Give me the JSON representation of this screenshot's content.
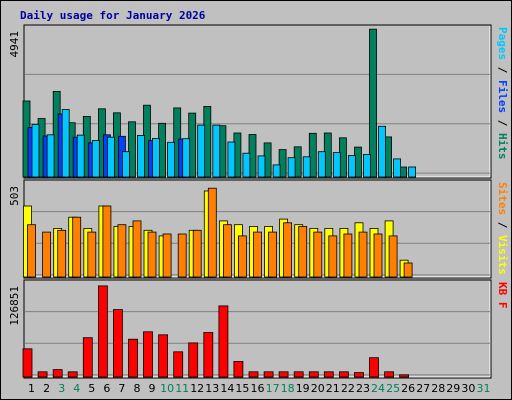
{
  "chart_data": {
    "type": "bar",
    "title": "Daily usage for January 2026",
    "categories": [
      "1",
      "2",
      "3",
      "4",
      "5",
      "6",
      "7",
      "8",
      "9",
      "10",
      "11",
      "12",
      "13",
      "14",
      "15",
      "16",
      "17",
      "18",
      "19",
      "20",
      "21",
      "22",
      "23",
      "24",
      "25",
      "26",
      "27",
      "28",
      "29",
      "30",
      "31"
    ],
    "weekend_days": [
      "3",
      "4",
      "10",
      "11",
      "17",
      "18",
      "24",
      "25",
      "31"
    ],
    "panels": [
      {
        "id": "hits-files-pages",
        "max_label": "4941",
        "ymax": 4941,
        "axis_label_parts": [
          {
            "text": "Pages",
            "color": "#00c8ff"
          },
          {
            "text": " / ",
            "color": "#000000"
          },
          {
            "text": "Files",
            "color": "#0040ff"
          },
          {
            "text": " / ",
            "color": "#000000"
          },
          {
            "text": "Hits",
            "color": "#00805c"
          }
        ],
        "series": [
          {
            "name": "Hits",
            "color": "#00805c",
            "values": [
              2520,
              1940,
              2840,
              1800,
              2010,
              2260,
              2130,
              1830,
              2380,
              1780,
              2290,
              2120,
              2340,
              1700,
              1460,
              1410,
              1130,
              910,
              1000,
              1450,
              1460,
              1300,
              990,
              4900,
              1330,
              330,
              0,
              0,
              0,
              0,
              0
            ]
          },
          {
            "name": "Files",
            "color": "#0040ff",
            "values": [
              1640,
              1360,
              2090,
              1320,
              1130,
              1400,
              1350,
              0,
              1210,
              0,
              1260,
              0,
              0,
              0,
              0,
              0,
              0,
              0,
              0,
              0,
              0,
              0,
              0,
              0,
              0,
              0,
              0,
              0,
              0,
              0,
              0
            ]
          },
          {
            "name": "Pages",
            "color": "#00c8ff",
            "values": [
              1740,
              1400,
              2240,
              1390,
              1210,
              1320,
              840,
              1380,
              1280,
              1150,
              1270,
              1720,
              1720,
              1160,
              790,
              700,
              400,
              640,
              670,
              840,
              810,
              710,
              750,
              1680,
              600,
              330,
              0,
              0,
              0,
              0,
              0
            ]
          }
        ]
      },
      {
        "id": "visits-sites",
        "max_label": "503",
        "ymax": 503,
        "axis_label_parts": [
          {
            "text": "Sites",
            "color": "#ff8000"
          },
          {
            "text": " / ",
            "color": "#000000"
          },
          {
            "text": "Visits",
            "color": "#ffff00"
          }
        ],
        "series": [
          {
            "name": "Visits",
            "color": "#ffff00",
            "values": [
              380,
              0,
              260,
              320,
              260,
              380,
              270,
              270,
              250,
              220,
              0,
              250,
              460,
              300,
              280,
              270,
              270,
              310,
              280,
              260,
              260,
              260,
              290,
              260,
              300,
              90,
              0,
              0,
              0,
              0,
              0
            ]
          },
          {
            "name": "Sites",
            "color": "#ff8000",
            "values": [
              280,
              240,
              250,
              320,
              240,
              380,
              280,
              300,
              240,
              230,
              230,
              250,
              475,
              280,
              220,
              240,
              240,
              290,
              270,
              240,
              220,
              230,
              240,
              230,
              220,
              75,
              0,
              0,
              0,
              0,
              0
            ]
          }
        ]
      },
      {
        "id": "kbytes",
        "max_label": "126851",
        "ymax": 126851,
        "axis_label_parts": [
          {
            "text": "KB F",
            "color": "#ff0000"
          }
        ],
        "series": [
          {
            "name": "KB F",
            "color": "#ff0000",
            "values": [
              38000,
              7000,
              10000,
              7000,
              53000,
              123000,
              91000,
              51000,
              61000,
              57000,
              34000,
              46000,
              60000,
              96000,
              21000,
              7000,
              7000,
              7000,
              7000,
              7000,
              7000,
              7000,
              6000,
              26000,
              7000,
              3000,
              0,
              0,
              0,
              0,
              0
            ]
          }
        ]
      }
    ]
  }
}
